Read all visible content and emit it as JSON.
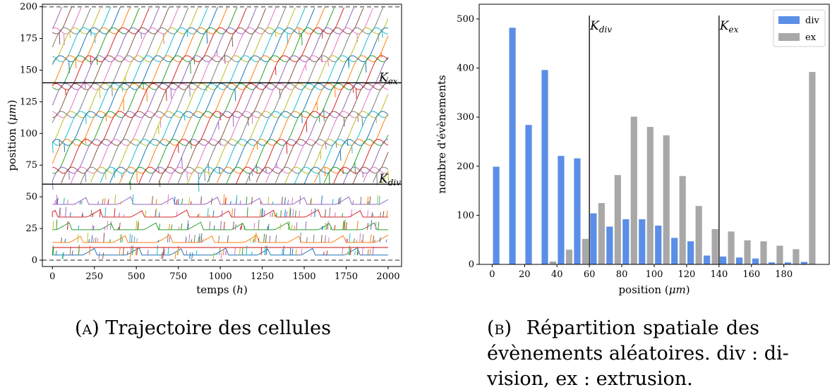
{
  "chart_data": [
    {
      "type": "line",
      "panel": "A",
      "xlabel": "temps",
      "xlabel_unit": "h",
      "ylabel": "position",
      "ylabel_unit": "μm",
      "xlim": [
        -60,
        2080
      ],
      "ylim": [
        -5,
        202
      ],
      "x_ticks": [
        0,
        250,
        500,
        750,
        1000,
        1250,
        1500,
        1750,
        2000
      ],
      "y_ticks": [
        0,
        25,
        50,
        75,
        100,
        125,
        150,
        175,
        200
      ],
      "threshold_lines": [
        {
          "name": "K",
          "sub": "ex",
          "y": 140
        },
        {
          "name": "K",
          "sub": "div",
          "y": 60
        }
      ],
      "boundary_dashed": [
        0,
        200
      ],
      "trajectory_colors": [
        "#1f77b4",
        "#ff7f0e",
        "#2ca02c",
        "#d62728",
        "#9467bd",
        "#8c564b",
        "#e377c2",
        "#7f7f7f",
        "#bcbd22",
        "#17becf"
      ],
      "x_max": 2000
    },
    {
      "type": "bar",
      "panel": "B",
      "xlabel": "position",
      "xlabel_unit": "μm",
      "ylabel": "nombre d'évènements",
      "xlim": [
        -8,
        208
      ],
      "ylim": [
        0,
        530
      ],
      "x_ticks": [
        0,
        20,
        40,
        60,
        80,
        100,
        120,
        140,
        160,
        180
      ],
      "y_ticks": [
        0,
        100,
        200,
        300,
        400,
        500
      ],
      "bin_centers": [
        5,
        15,
        25,
        35,
        45,
        55,
        65,
        75,
        85,
        95,
        105,
        115,
        125,
        135,
        145,
        155,
        165,
        175,
        185,
        195
      ],
      "series": [
        {
          "name": "div",
          "color": "#5b8ee6",
          "values": [
            199,
            482,
            284,
            396,
            221,
            216,
            104,
            77,
            92,
            92,
            79,
            54,
            47,
            18,
            16,
            14,
            12,
            4,
            4,
            5
          ]
        },
        {
          "name": "ex",
          "color": "#a8a8a8",
          "values": [
            0,
            0,
            0,
            6,
            30,
            52,
            125,
            182,
            301,
            280,
            263,
            180,
            119,
            72,
            67,
            49,
            47,
            38,
            31,
            392
          ]
        }
      ],
      "threshold_lines": [
        {
          "name": "K",
          "sub": "div",
          "x": 60
        },
        {
          "name": "K",
          "sub": "ex",
          "x": 140
        }
      ],
      "legend_position": "top-right"
    }
  ],
  "captions": {
    "a_label": "(a)",
    "a_text": "Trajectoire des cellules",
    "b_label": "(b)",
    "b_line1": "Répartition spatiale des",
    "b_line2": "évènements aléatoires. div : di-",
    "b_line3": "vision, ex : extrusion."
  }
}
